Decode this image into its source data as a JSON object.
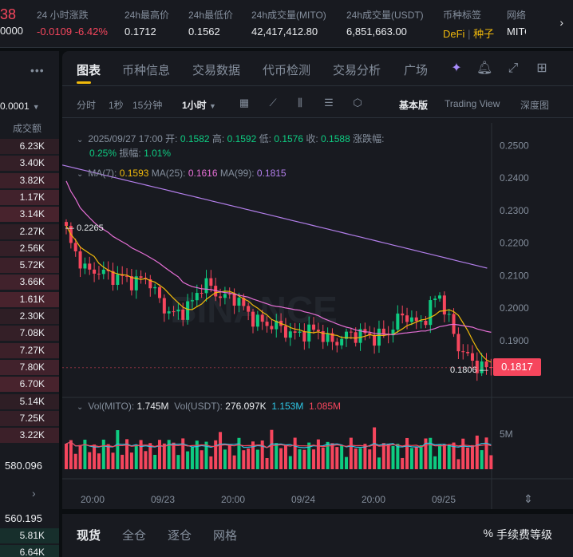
{
  "topbar": {
    "price_partial": "38",
    "price_partial2": "0000",
    "stats": [
      {
        "label": "24 小时涨跌",
        "value": "-0.0109 -6.42%"
      },
      {
        "label": "24h最高价",
        "value": "0.1712"
      },
      {
        "label": "24h最低价",
        "value": "0.1562"
      },
      {
        "label": "24h成交量(MITO)",
        "value": "42,417,412.80"
      },
      {
        "label": "24h成交量(USDT)",
        "value": "6,851,663.00"
      },
      {
        "label": "币种标签",
        "value_a": "DeFi",
        "value_b": "种子"
      },
      {
        "label": "网络",
        "value": "MITO"
      }
    ]
  },
  "orderbook": {
    "precision": "0.0001",
    "header": "成交额",
    "asks": [
      "6.23K",
      "3.40K",
      "3.82K",
      "1.17K",
      "3.14K",
      "2.27K",
      "2.56K",
      "5.72K",
      "3.66K",
      "1.61K",
      "2.30K",
      "7.08K",
      "7.27K",
      "7.80K",
      "6.70K",
      "5.14K",
      "7.25K",
      "3.22K"
    ],
    "mid_price": "580.096",
    "price2": "560.195",
    "bids": [
      "5.81K",
      "6.64K"
    ]
  },
  "tabs": [
    "图表",
    "币种信息",
    "交易数据",
    "代币检测",
    "交易分析",
    "广场"
  ],
  "toolbar": {
    "intervals": [
      "分时",
      "1秒",
      "15分钟",
      "1小时"
    ],
    "views": [
      "基本版",
      "Trading View",
      "深度图"
    ]
  },
  "candle_info": {
    "time": "2025/09/27 17:00",
    "open_label": "开:",
    "open": "0.1582",
    "high_label": "高:",
    "high": "0.1592",
    "low_label": "低:",
    "low": "0.1576",
    "close_label": "收:",
    "close": "0.1588",
    "chg_label": "涨跌幅:",
    "chg": "0.25%",
    "amp_label": "振幅:",
    "amp": "1.01%"
  },
  "ma_info": {
    "ma7_label": "MA(7):",
    "ma7": "0.1593",
    "ma25_label": "MA(25):",
    "ma25": "0.1616",
    "ma99_label": "MA(99):",
    "ma99": "0.1815"
  },
  "vol_info": {
    "mito_label": "Vol(MITO):",
    "mito": "1.745M",
    "usdt_label": "Vol(USDT):",
    "usdt": "276.097K",
    "v1": "1.153M",
    "v2": "1.085M"
  },
  "watermark": "BINANCE",
  "price_axis": [
    "0.2500",
    "0.2400",
    "0.2300",
    "0.2200",
    "0.2100",
    "0.2000",
    "0.1900"
  ],
  "vol_axis": [
    "5M"
  ],
  "time_axis": [
    "20:00",
    "09/23",
    "20:00",
    "09/24",
    "20:00",
    "09/25"
  ],
  "last_price": "0.1817",
  "high_marker": "0.2265",
  "low_marker": "0.1806",
  "bottom_tabs": [
    "现货",
    "全仓",
    "逐仓",
    "网格"
  ],
  "fee_label": "手续费等级",
  "colors": {
    "up": "#0ecb81",
    "down": "#f6465d",
    "accent": "#f0b90b",
    "ma7": "#f0b90b",
    "ma25": "#e66fd6",
    "ma99": "#b37feb"
  },
  "chart_data": {
    "type": "candlestick",
    "ylim": [
      0.176,
      0.254
    ],
    "x": [
      "09/22 20:00",
      "09/23",
      "09/23 20:00",
      "09/24",
      "09/24 20:00",
      "09/25",
      "09/25 20:00"
    ],
    "close_approx": [
      0.225,
      0.208,
      0.207,
      0.195,
      0.209,
      0.191,
      0.193,
      0.19,
      0.205,
      0.2085,
      0.19,
      0.1817
    ]
  }
}
